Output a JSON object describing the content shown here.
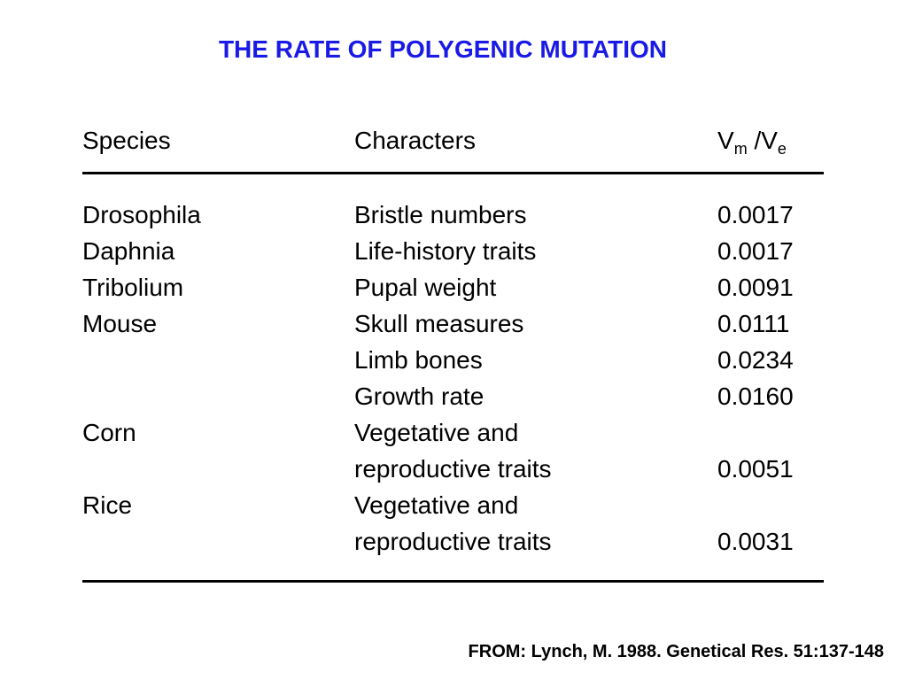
{
  "title": "THE RATE OF POLYGENIC MUTATION",
  "colors": {
    "title": "#1a1ae6",
    "text": "#000000",
    "background": "#ffffff"
  },
  "table": {
    "headers": {
      "species": "Species",
      "characters": "Characters",
      "ratio": {
        "v1": "V",
        "sub1": "m",
        "sep": " /V",
        "sub2": "e"
      }
    },
    "rows": [
      {
        "species": "Drosophila",
        "character": "Bristle numbers",
        "value": "0.0017"
      },
      {
        "species": "Daphnia",
        "character": "Life-history traits",
        "value": "0.0017"
      },
      {
        "species": "Tribolium",
        "character": "Pupal weight",
        "value": "0.0091"
      },
      {
        "species": "Mouse",
        "character": "Skull measures",
        "value": "0.0111"
      },
      {
        "species": "",
        "character": "Limb bones",
        "value": "0.0234"
      },
      {
        "species": "",
        "character": "Growth rate",
        "value": "0.0160"
      },
      {
        "species": "Corn",
        "character": "Vegetative and",
        "value": ""
      },
      {
        "species": "",
        "character": "reproductive traits",
        "value": "0.0051"
      },
      {
        "species": "Rice",
        "character": "Vegetative and",
        "value": ""
      },
      {
        "species": "",
        "character": "reproductive traits",
        "value": "0.0031"
      }
    ]
  },
  "source": "FROM: Lynch, M. 1988. Genetical Res. 51:137-148"
}
